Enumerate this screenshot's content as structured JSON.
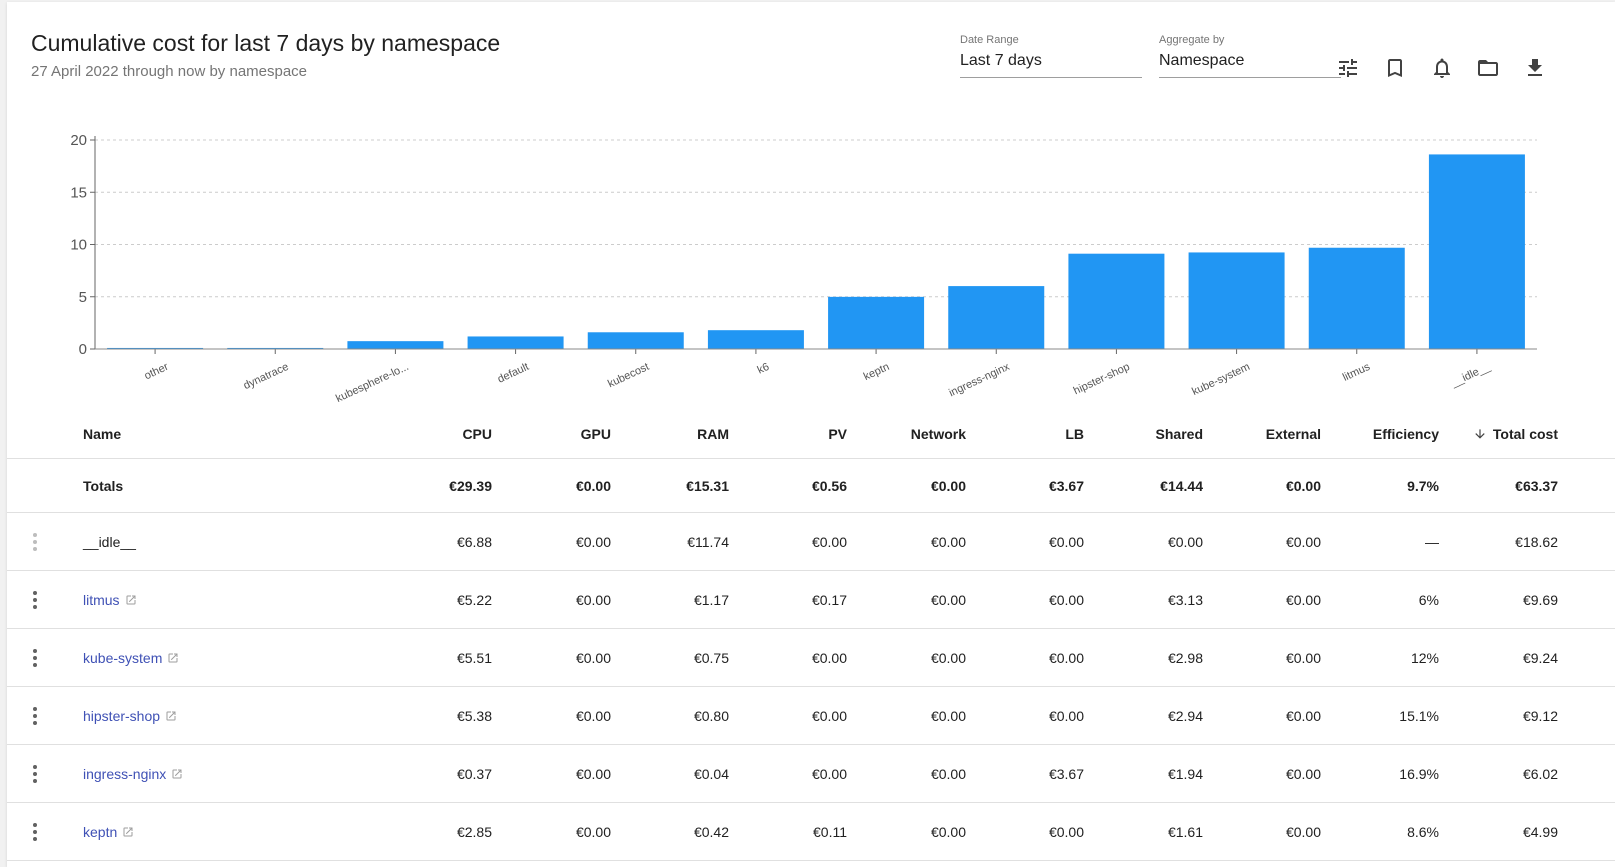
{
  "header": {
    "title": "Cumulative cost for last 7 days by namespace",
    "subtitle": "27 April 2022 through now by namespace"
  },
  "controls": {
    "date_range": {
      "label": "Date Range",
      "value": "Last 7 days"
    },
    "aggregate_by": {
      "label": "Aggregate by",
      "value": "Namespace"
    },
    "icons": [
      "tune-icon",
      "bookmark-icon",
      "bell-icon",
      "folder-icon",
      "download-icon"
    ]
  },
  "colors": {
    "bar": "#2196f3",
    "link": "#3f51b5",
    "grid": "#cccccc"
  },
  "chart_data": {
    "type": "bar",
    "categories": [
      "other",
      "dynatrace",
      "kubesphere-lo...",
      "default",
      "kubecost",
      "k6",
      "keptn",
      "ingress-nginx",
      "hipster-shop",
      "kube-system",
      "litmus",
      "__idle__"
    ],
    "values": [
      0.1,
      0.1,
      0.75,
      1.2,
      1.6,
      1.8,
      4.99,
      6.02,
      9.12,
      9.24,
      9.69,
      18.62
    ],
    "yticks": [
      0,
      5,
      10,
      15,
      20
    ],
    "ylim": [
      0,
      20
    ],
    "grid": true
  },
  "table": {
    "columns": [
      "Name",
      "CPU",
      "GPU",
      "RAM",
      "PV",
      "Network",
      "LB",
      "Shared",
      "External",
      "Efficiency",
      "Total cost"
    ],
    "totals": {
      "name": "Totals",
      "values": [
        "€29.39",
        "€0.00",
        "€15.31",
        "€0.56",
        "€0.00",
        "€3.67",
        "€14.44",
        "€0.00",
        "9.7%",
        "€63.37"
      ]
    },
    "rows": [
      {
        "name": "__idle__",
        "link": false,
        "values": [
          "€6.88",
          "€0.00",
          "€11.74",
          "€0.00",
          "€0.00",
          "€0.00",
          "€0.00",
          "€0.00",
          "—",
          "€18.62"
        ]
      },
      {
        "name": "litmus",
        "link": true,
        "values": [
          "€5.22",
          "€0.00",
          "€1.17",
          "€0.17",
          "€0.00",
          "€0.00",
          "€3.13",
          "€0.00",
          "6%",
          "€9.69"
        ]
      },
      {
        "name": "kube-system",
        "link": true,
        "values": [
          "€5.51",
          "€0.00",
          "€0.75",
          "€0.00",
          "€0.00",
          "€0.00",
          "€2.98",
          "€0.00",
          "12%",
          "€9.24"
        ]
      },
      {
        "name": "hipster-shop",
        "link": true,
        "values": [
          "€5.38",
          "€0.00",
          "€0.80",
          "€0.00",
          "€0.00",
          "€0.00",
          "€2.94",
          "€0.00",
          "15.1%",
          "€9.12"
        ]
      },
      {
        "name": "ingress-nginx",
        "link": true,
        "values": [
          "€0.37",
          "€0.00",
          "€0.04",
          "€0.00",
          "€0.00",
          "€3.67",
          "€1.94",
          "€0.00",
          "16.9%",
          "€6.02"
        ]
      },
      {
        "name": "keptn",
        "link": true,
        "values": [
          "€2.85",
          "€0.00",
          "€0.42",
          "€0.11",
          "€0.00",
          "€0.00",
          "€1.61",
          "€0.00",
          "8.6%",
          "€4.99"
        ]
      }
    ]
  }
}
